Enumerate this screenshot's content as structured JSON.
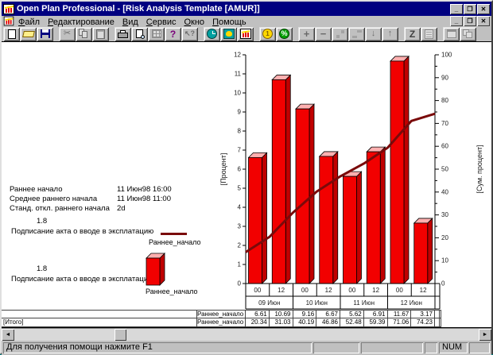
{
  "window": {
    "title": "Open Plan Professional - [Risk Analysis Template [AMUR]]"
  },
  "menu": {
    "items": [
      {
        "label": "Файл"
      },
      {
        "label": "Редактирование"
      },
      {
        "label": "Вид"
      },
      {
        "label": "Сервис"
      },
      {
        "label": "Окно"
      },
      {
        "label": "Помощь"
      }
    ]
  },
  "toolbar": {
    "groups": [
      [
        {
          "name": "new-document-icon"
        },
        {
          "name": "open-folder-icon"
        },
        {
          "name": "save-icon"
        }
      ],
      [
        {
          "name": "cut-icon",
          "disabled": true
        },
        {
          "name": "copy-icon",
          "disabled": true
        },
        {
          "name": "paste-icon",
          "disabled": true
        }
      ],
      [
        {
          "name": "print-icon"
        },
        {
          "name": "print-preview-icon"
        },
        {
          "name": "insert-table-icon",
          "disabled": true
        },
        {
          "name": "help-icon"
        },
        {
          "name": "context-help-icon",
          "disabled": true
        }
      ],
      [
        {
          "name": "clock-icon"
        },
        {
          "name": "duck-icon"
        },
        {
          "name": "histogram-icon"
        }
      ],
      [
        {
          "name": "coin-icon"
        },
        {
          "name": "percent-icon"
        }
      ],
      [
        {
          "name": "plus-icon",
          "disabled": true
        },
        {
          "name": "minus-icon",
          "disabled": true
        },
        {
          "name": "link-dots-icon",
          "disabled": true
        },
        {
          "name": "link-steps-icon",
          "disabled": true
        },
        {
          "name": "arrow-down-icon",
          "disabled": true
        },
        {
          "name": "arrow-up-icon",
          "disabled": true
        }
      ],
      [
        {
          "name": "sort-z-icon"
        },
        {
          "name": "notes-icon",
          "disabled": true
        }
      ],
      [
        {
          "name": "tile-windows-icon",
          "disabled": true
        },
        {
          "name": "cascade-windows-icon",
          "disabled": true
        }
      ]
    ]
  },
  "stats": {
    "rows": [
      {
        "label": "Раннее начало",
        "value": "11 Июн98 16:00"
      },
      {
        "label": "Среднее раннего начала",
        "value": "11 Июн98 11:00"
      },
      {
        "label": "Станд. откл.  раннего начала",
        "value": "2d"
      }
    ]
  },
  "legend": {
    "items": [
      {
        "code": "1.8",
        "activity": "Подписание акта о вводе в эксплатацию",
        "series": "Раннее_начало",
        "swatch": "line"
      },
      {
        "code": "1.8",
        "activity": "Подписание акта о вводе в эксплатацию",
        "series": "Раннее_начало",
        "swatch": "bar"
      }
    ]
  },
  "chart_data": {
    "type": "bar+line",
    "hour_labels": [
      "00",
      "12",
      "00",
      "12",
      "00",
      "12",
      "00",
      "12"
    ],
    "date_groups": [
      "09 Июн",
      "10 Июн",
      "11 Июн",
      "12 Июн"
    ],
    "series": [
      {
        "name": "Раннее_начало",
        "type": "bar",
        "axis": "left",
        "values": [
          6.61,
          10.69,
          9.16,
          6.67,
          5.62,
          6.91,
          11.67,
          3.17
        ],
        "color": "#f20000"
      },
      {
        "name": "Раннее_начало (кумулятив)",
        "type": "line",
        "axis": "right",
        "values": [
          13.73,
          20.34,
          31.03,
          40.19,
          46.86,
          52.48,
          59.39,
          71.06,
          74.23
        ],
        "color": "#7a0a0a"
      }
    ],
    "ylabel_left": "[Процент]",
    "ylabel_right": "[Сум. процент]",
    "ylim_left": [
      0,
      12
    ],
    "ylim_right": [
      0,
      100
    ],
    "tick_step_left": 1,
    "tick_step_right": 10,
    "grid": false,
    "legend_position": "left"
  },
  "table": {
    "rows": [
      {
        "row_label": "",
        "series_label": "Раннее_начало",
        "values": [
          "6.61",
          "10.69",
          "9.16",
          "6.67",
          "5.62",
          "6.91",
          "11.67",
          "3.17"
        ]
      },
      {
        "row_label": "[Итого]",
        "series_label": "Раннее_начало",
        "values": [
          "20.34",
          "31.03",
          "40.19",
          "46.86",
          "52.48",
          "59.39",
          "71.06",
          "74.23"
        ]
      }
    ]
  },
  "window_buttons": {
    "minimize": "_",
    "restore": "❐",
    "close": "✕"
  },
  "scrollbar": {
    "left_arrow": "◄",
    "right_arrow": "►"
  },
  "statusbar": {
    "message": "Для получения помощи нажмите F1",
    "num_label": "NUM"
  }
}
